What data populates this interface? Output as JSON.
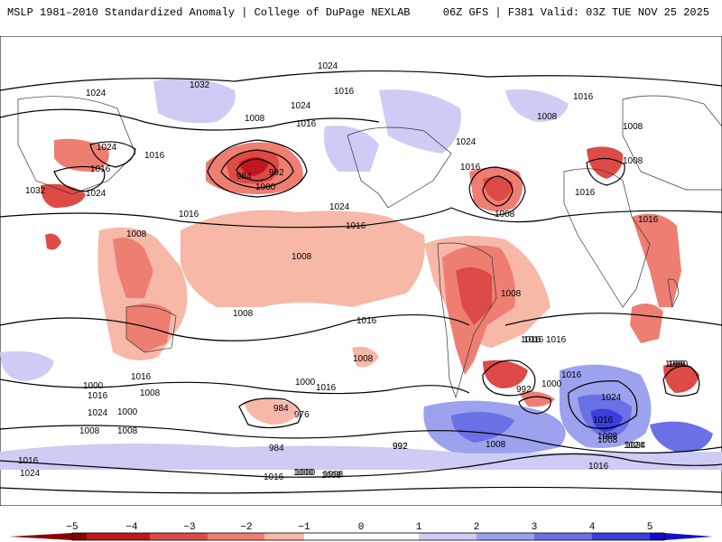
{
  "header": {
    "left_title": "MSLP 1981–2010 Standardized Anomaly | College of DuPage NEXLAB",
    "right_title": "06Z GFS | F381 Valid: 03Z TUE NOV 25 2025"
  },
  "colorbar": {
    "ticks": [
      "−5",
      "−4",
      "−3",
      "−2",
      "−1",
      "0",
      "1",
      "2",
      "3",
      "4",
      "5"
    ],
    "colors": {
      "neg5": "#8b0000",
      "neg4": "#c0181e",
      "neg3": "#de4a46",
      "neg2": "#ee7e72",
      "neg1": "#f7b8a8",
      "zero": "#ffffff",
      "pos1": "#ccccf4",
      "pos2": "#9da2ee",
      "pos3": "#6a70e6",
      "pos4": "#3a3ede",
      "pos5": "#1010c8"
    }
  },
  "contour_labels": [
    "1024",
    "1032",
    "1016",
    "1024",
    "1024",
    "1008",
    "1016",
    "1016",
    "1032",
    "1024",
    "1016",
    "1008",
    "1016",
    "1024",
    "1008",
    "984",
    "992",
    "1000",
    "1024",
    "1016",
    "1008",
    "1016",
    "1024",
    "1016",
    "1008",
    "1008",
    "1008",
    "1016",
    "1016",
    "1008",
    "1008",
    "1000",
    "1016",
    "1008",
    "1016",
    "1000",
    "992",
    "1016",
    "1000",
    "1024",
    "1016",
    "1008",
    "1000",
    "1008",
    "1016",
    "984",
    "976",
    "1024",
    "992",
    "1008",
    "1000",
    "1000",
    "1000",
    "1016",
    "1024",
    "1016",
    "1008",
    "1008",
    "984",
    "992",
    "1016",
    "1024",
    "1016",
    "1016",
    "1000",
    "1008",
    "1008",
    "1016",
    "1024",
    "1016",
    "1008"
  ]
}
